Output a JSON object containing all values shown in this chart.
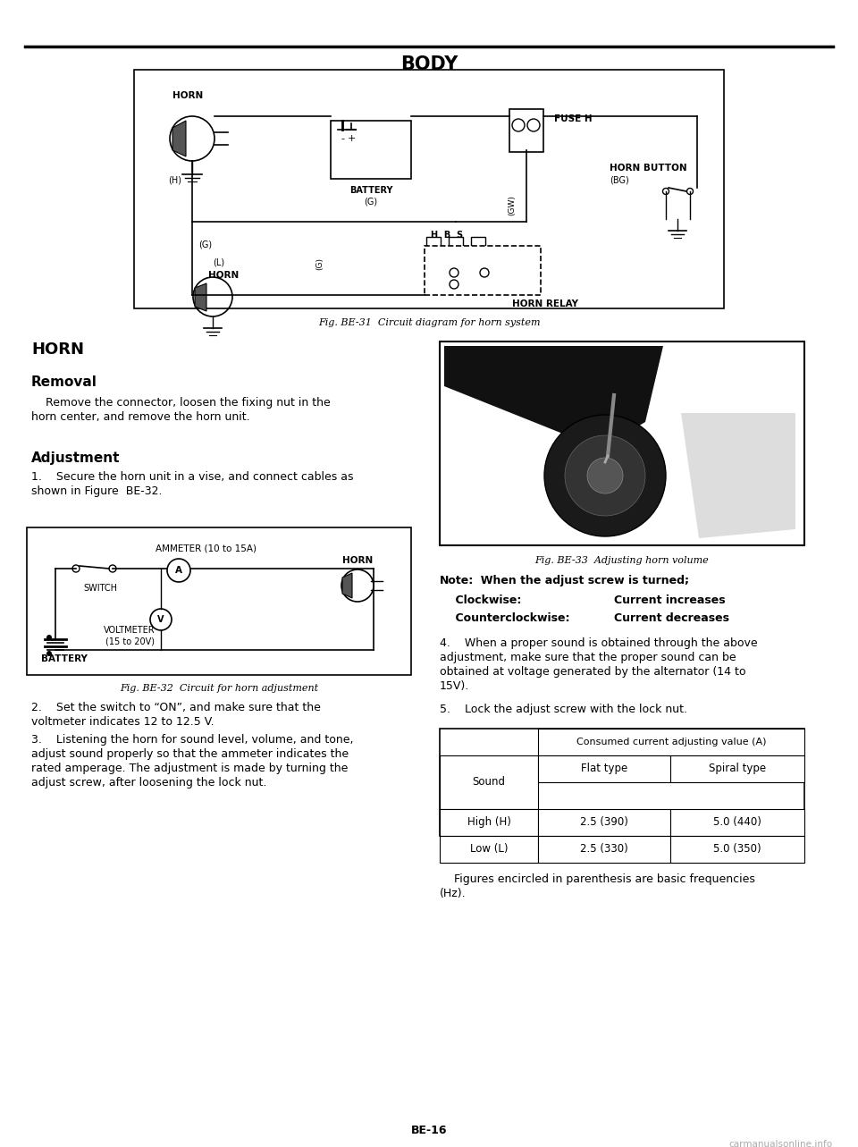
{
  "title": "BODY",
  "page_number": "BE-16",
  "watermark": "carmanualsonline.info",
  "bg_color": "#ffffff",
  "fig_caption1": "Fig. BE-31  Circuit diagram for horn system",
  "fig_caption2": "Fig. BE-32  Circuit for horn adjustment",
  "fig_caption3": "Fig. BE-33  Adjusting horn volume",
  "section_title": "HORN",
  "subsection1": "Removal",
  "text1_line1": "    Remove the connector, loosen the fixing nut in the",
  "text1_line2": "horn center, and remove the horn unit.",
  "subsection2": "Adjustment",
  "item1_line1": "1.    Secure the horn unit in a vise, and connect cables as",
  "item1_line2": "shown in Figure  BE-32.",
  "item2_line1": "2.    Set the switch to “ON”, and make sure that the",
  "item2_line2": "voltmeter indicates 12 to 12.5 V.",
  "item3_line1": "3.    Listening the horn for sound level, volume, and tone,",
  "item3_line2": "adjust sound properly so that the ammeter indicates the",
  "item3_line3": "rated amperage. The adjustment is made by turning the",
  "item3_line4": "adjust screw, after loosening the lock nut.",
  "note_label": "Note:",
  "note_text": "  When the adjust screw is turned;",
  "note_row1_col1": "    Clockwise:",
  "note_row1_col2": "Current increases",
  "note_row2_col1": "    Counterclockwise:",
  "note_row2_col2": "Current decreases",
  "item4_line1": "4.    When a proper sound is obtained through the above",
  "item4_line2": "adjustment, make sure that the proper sound can be",
  "item4_line3": "obtained at voltage generated by the alternator (14 to",
  "item4_line4": "15V).",
  "item5": "5.    Lock the adjust screw with the lock nut.",
  "table_header_main": "Consumed current adjusting value (A)",
  "table_col1": "Sound",
  "table_col2": "Flat type",
  "table_col3": "Spiral type",
  "table_rows": [
    [
      "High (H)",
      "2.5 (390)",
      "5.0 (440)"
    ],
    [
      "Low (L)",
      "2.5 (330)",
      "5.0 (350)"
    ]
  ],
  "table_foot1": "    Figures encircled in parenthesis are basic frequencies",
  "table_foot2": "(Hz).",
  "diag1_label_horn_top": "HORN",
  "diag1_label_battery": "BATTERY",
  "diag1_label_g": "(G)",
  "diag1_label_h": "(H)",
  "diag1_label_l": "(L)",
  "diag1_label_horn_bot": "HORN",
  "diag1_label_fuse": "FUSE H",
  "diag1_label_gw": "(GW)",
  "diag1_label_hb": "H  B  S",
  "diag1_label_hornbtn": "HORN BUTTON",
  "diag1_label_bg": "(BG)",
  "diag1_label_relay": "HORN RELAY",
  "diag2_label_ammeter": "AMMETER (10 to 15A)",
  "diag2_label_switch": "SWITCH",
  "diag2_label_horn": "HORN",
  "diag2_label_voltmeter": "VOLTMETER",
  "diag2_label_volt_range": "(15 to 20V)",
  "diag2_label_battery": "BATTERY"
}
